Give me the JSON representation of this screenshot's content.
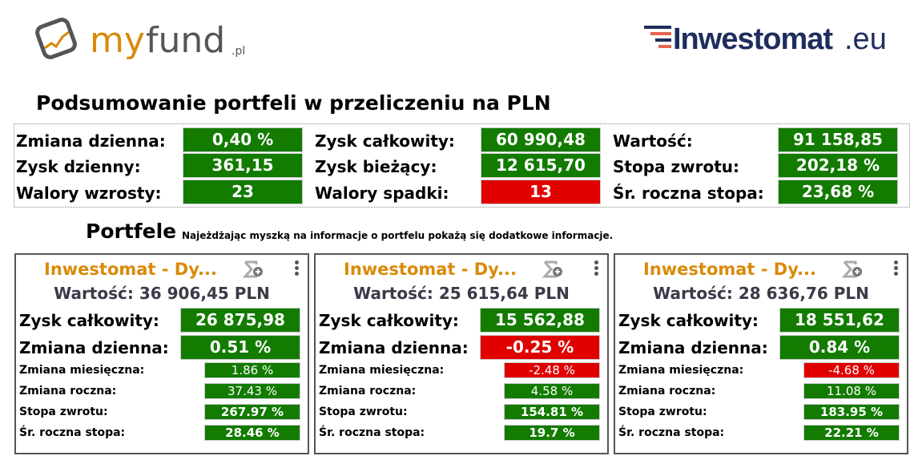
{
  "logos": {
    "left": "myfund.pl",
    "right": "Inwestomat.eu"
  },
  "summary": {
    "title": "Podsumowanie portfeli w przeliczeniu na PLN",
    "rows": [
      {
        "label": "Zmiana dzienna:",
        "value": "0,40 %",
        "status": "positive"
      },
      {
        "label": "Zysk dzienny:",
        "value": "361,15",
        "status": "positive"
      },
      {
        "label": "Walory wzrosty:",
        "value": "23",
        "status": "positive"
      },
      {
        "label": "Zysk całkowity:",
        "value": "60 990,48",
        "status": "positive"
      },
      {
        "label": "Zysk bieżący:",
        "value": "12 615,70",
        "status": "positive"
      },
      {
        "label": "Walory spadki:",
        "value": "13",
        "status": "negative"
      },
      {
        "label": "Wartość:",
        "value": "91 158,85",
        "status": "positive"
      },
      {
        "label": "Stopa zwrotu:",
        "value": "202,18 %",
        "status": "positive"
      },
      {
        "label": "Śr. roczna stopa:",
        "value": "23,68 %",
        "status": "positive"
      }
    ]
  },
  "portfolios": {
    "heading": "Portfele",
    "note": "Najeżdżając myszką na informacje o portfelu pokażą się dodatkowe informacje.",
    "labels": {
      "total": "Zysk całkowity:",
      "daily": "Zmiana dzienna:",
      "monthly": "Zmiana miesięczna:",
      "yearly": "Zmiana roczna:",
      "ror": "Stopa zwrotu:",
      "avg": "Śr. roczna stopa:"
    },
    "cards": [
      {
        "name": "Inwestomat - Dy...",
        "value": "Wartość: 36 906,45 PLN",
        "total": "26 875,98",
        "daily": "0.51 %",
        "daily_status": "positive",
        "monthly": "1.86 %",
        "monthly_status": "positive",
        "yearly": "37.43 %",
        "ror": "267.97 %",
        "avg": "28.46 %"
      },
      {
        "name": "Inwestomat - Dy...",
        "value": "Wartość: 25 615,64 PLN",
        "total": "15 562,88",
        "daily": "-0.25 %",
        "daily_status": "negative",
        "monthly": "-2.48 %",
        "monthly_status": "negative",
        "yearly": "4.58 %",
        "ror": "154.81 %",
        "avg": "19.7 %"
      },
      {
        "name": "Inwestomat - Dy...",
        "value": "Wartość: 28 636,76 PLN",
        "total": "18 551,62",
        "daily": "0.84 %",
        "daily_status": "positive",
        "monthly": "-4.68 %",
        "monthly_status": "negative",
        "yearly": "11.08 %",
        "ror": "183.95 %",
        "avg": "22.21 %"
      }
    ]
  },
  "colors": {
    "positive": "#127b00",
    "negative": "#e00000",
    "title": "#d98a0a"
  }
}
